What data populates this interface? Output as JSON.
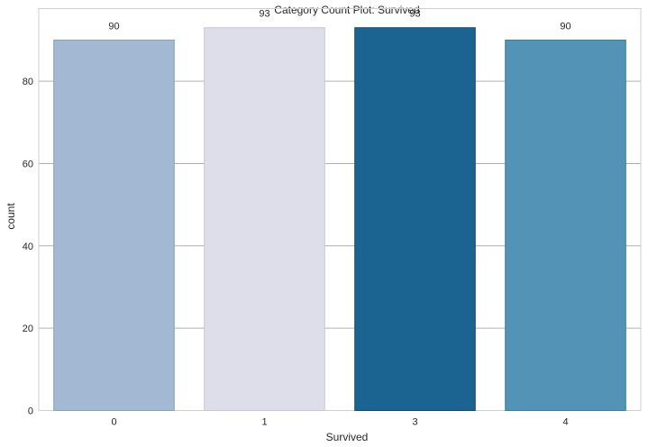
{
  "chart_data": {
    "type": "bar",
    "title": "Category Count Plot: Survived",
    "xlabel": "Survived",
    "ylabel": "count",
    "categories": [
      "0",
      "1",
      "3",
      "4"
    ],
    "values": [
      90,
      93,
      93,
      90
    ],
    "data_labels": [
      "90",
      "93",
      "93",
      "90"
    ],
    "ylim": [
      0,
      97.65
    ],
    "yticks": [
      0,
      20,
      40,
      60,
      80
    ],
    "ytick_labels": [
      "0",
      "20",
      "40",
      "60",
      "80"
    ],
    "colors": [
      "#a3b8d2",
      "#dddeea",
      "#1b6491",
      "#5293b6"
    ],
    "edge_colors": [
      "#8b9fb8",
      "#c6c7d6",
      "#124a6c",
      "#3e7a9a"
    ],
    "grid": true,
    "legend": "none"
  }
}
